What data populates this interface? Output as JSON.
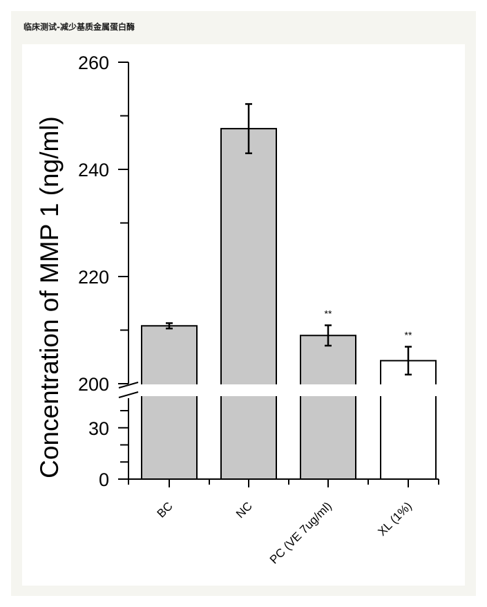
{
  "header": {
    "title": "临床测试-减少基质金属蛋白酶"
  },
  "chart_data": {
    "type": "bar",
    "title": "",
    "xlabel": "",
    "ylabel": "Concentration of MMP 1 (ng/ml)",
    "axis_break": {
      "lower_range": [
        0,
        40
      ],
      "upper_range": [
        200,
        260
      ]
    },
    "y_ticks_major": [
      "0",
      "30",
      "200",
      "220",
      "240",
      "260"
    ],
    "categories": [
      "BC",
      "NC",
      "PC (VE 7ug/ml)",
      "XL (1%)"
    ],
    "values": [
      210.8,
      247.6,
      209.0,
      204.3
    ],
    "errors": [
      0.5,
      4.6,
      1.9,
      2.6
    ],
    "significance": [
      "",
      "",
      "**",
      "**"
    ],
    "bar_colors": [
      "#c8c8c8",
      "#c8c8c8",
      "#c8c8c8",
      "#ffffff"
    ]
  }
}
